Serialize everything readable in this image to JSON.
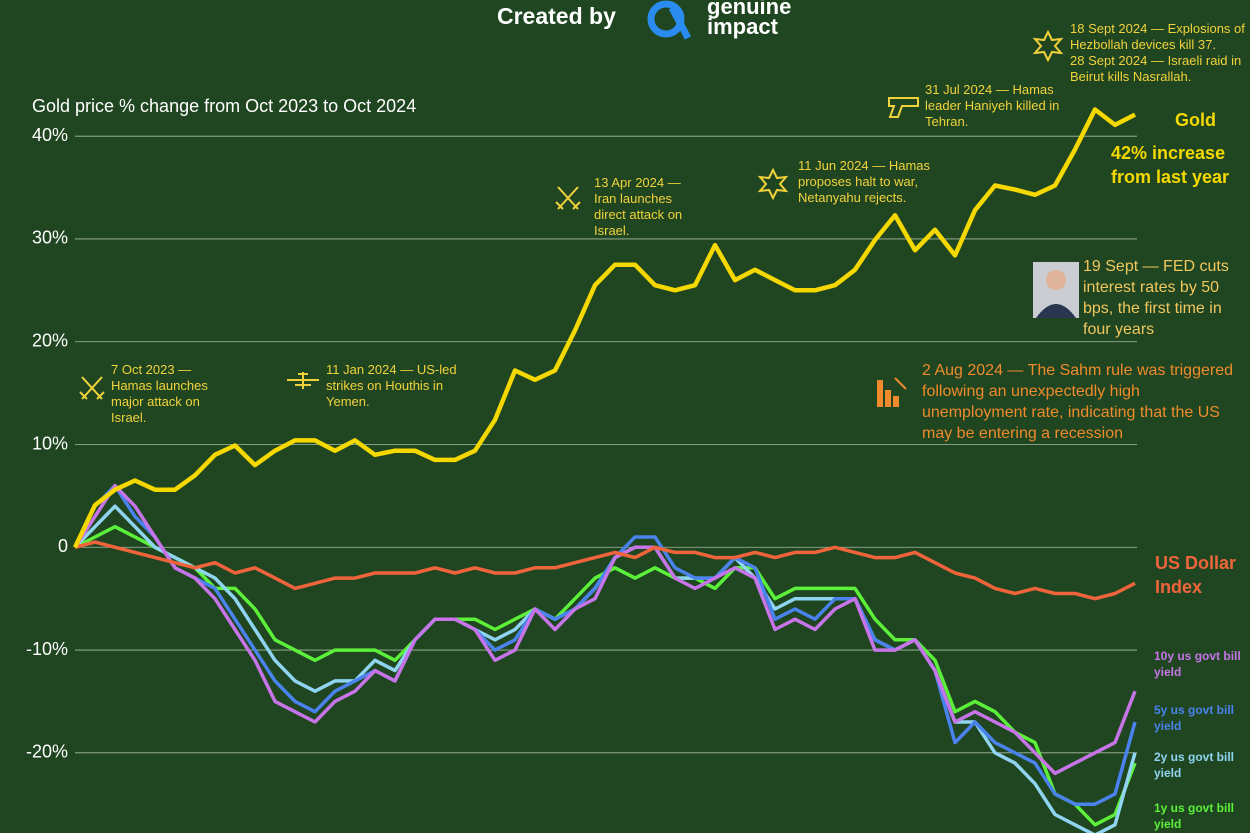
{
  "header": {
    "credit": "Created by",
    "brand": [
      "genuine",
      "impact"
    ]
  },
  "chart_data": {
    "type": "line",
    "title": "Gold price % change from Oct 2023 to Oct 2024",
    "ylim": [
      -27.8,
      45
    ],
    "yticks": [
      {
        "value": 40,
        "label": "40%"
      },
      {
        "value": 30,
        "label": "30%"
      },
      {
        "value": 20,
        "label": "20%"
      },
      {
        "value": 10,
        "label": "10%"
      },
      0,
      {
        "value": -10,
        "label": "-10%"
      },
      {
        "value": -20,
        "label": "-20%"
      }
    ],
    "grid": true,
    "series": [
      {
        "name": "Gold",
        "color": "#f5d800",
        "values": [
          0,
          4.1,
          5.6,
          6.5,
          5.6,
          5.6,
          7.0,
          9.0,
          9.9,
          8.0,
          9.4,
          10.4,
          10.4,
          9.4,
          10.4,
          9.0,
          9.4,
          9.4,
          8.5,
          8.5,
          9.4,
          12.4,
          17.2,
          16.3,
          17.2,
          21.1,
          25.5,
          27.5,
          27.5,
          25.5,
          25.0,
          25.5,
          29.4,
          26.0,
          27.0,
          26.0,
          25.0,
          25.0,
          25.5,
          27.0,
          29.9,
          32.3,
          28.9,
          30.9,
          28.4,
          32.8,
          35.2,
          34.8,
          34.3,
          35.2,
          38.7,
          42.6,
          41.1,
          42.1
        ]
      },
      {
        "name": "US Dollar Index",
        "color": "#f0643c",
        "values": [
          0,
          0.5,
          0,
          -0.5,
          -1,
          -1.5,
          -2,
          -1.5,
          -2.5,
          -2,
          -3,
          -4,
          -3.5,
          -3,
          -3,
          -2.5,
          -2.5,
          -2.5,
          -2,
          -2.5,
          -2,
          -2.5,
          -2.5,
          -2,
          -2,
          -1.5,
          -1,
          -0.5,
          -1,
          0,
          -0.5,
          -0.5,
          -1,
          -1,
          -0.5,
          -1,
          -0.5,
          -0.5,
          0,
          -0.5,
          -1,
          -1,
          -0.5,
          -1.5,
          -2.5,
          -3,
          -4,
          -4.5,
          -4,
          -4.5,
          -4.5,
          -5,
          -4.5,
          -3.5
        ]
      },
      {
        "name": "10y us govt bill yield",
        "color": "#c774e8",
        "values": [
          0,
          3,
          6,
          4,
          1,
          -2,
          -3,
          -5,
          -8,
          -11,
          -15,
          -16,
          -17,
          -15,
          -14,
          -12,
          -13,
          -9,
          -7,
          -7,
          -8,
          -11,
          -10,
          -6,
          -8,
          -6,
          -5,
          -1,
          0,
          0,
          -3,
          -4,
          -3,
          -2,
          -3,
          -8,
          -7,
          -8,
          -6,
          -5,
          -10,
          -10,
          -9,
          -12,
          -17,
          -16,
          -17,
          -18,
          -20,
          -22,
          -21,
          -20,
          -19,
          -14
        ]
      },
      {
        "name": "5y us govt bill yield",
        "color": "#4a82ee",
        "values": [
          0,
          4,
          6,
          3,
          1,
          -2,
          -3,
          -4,
          -7,
          -10,
          -13,
          -15,
          -16,
          -14,
          -13,
          -12,
          -13,
          -9,
          -7,
          -7,
          -8,
          -10,
          -9,
          -6,
          -7,
          -6,
          -4,
          -1,
          1,
          1,
          -2,
          -3,
          -3,
          -1,
          -2,
          -7,
          -6,
          -7,
          -5,
          -5,
          -9,
          -10,
          -9,
          -12,
          -19,
          -17,
          -19,
          -20,
          -21,
          -24,
          -25,
          -25,
          -24,
          -17
        ]
      },
      {
        "name": "2y us govt bill yield",
        "color": "#8fd4f0",
        "values": [
          0,
          2,
          4,
          2,
          0,
          -1,
          -2,
          -3,
          -5,
          -8,
          -11,
          -13,
          -14,
          -13,
          -13,
          -11,
          -12,
          -9,
          -7,
          -7,
          -8,
          -9,
          -8,
          -6,
          -7,
          -6,
          -4,
          -1,
          0,
          0,
          -3,
          -3,
          -3,
          -1,
          -3,
          -6,
          -5,
          -5,
          -5,
          -5,
          -9,
          -10,
          -9,
          -12,
          -17,
          -17,
          -20,
          -21,
          -23,
          -26,
          -27,
          -28,
          -27,
          -20
        ]
      },
      {
        "name": "1y us govt bill yield",
        "color": "#5df03a",
        "values": [
          0,
          1,
          2,
          1,
          0,
          -1,
          -2,
          -4,
          -4,
          -6,
          -9,
          -10,
          -11,
          -10,
          -10,
          -10,
          -11,
          -9,
          -7,
          -7,
          -7,
          -8,
          -7,
          -6,
          -7,
          -5,
          -3,
          -2,
          -3,
          -2,
          -3,
          -3,
          -4,
          -2,
          -2,
          -5,
          -4,
          -4,
          -4,
          -4,
          -7,
          -9,
          -9,
          -11,
          -16,
          -15,
          -16,
          -18,
          -19,
          -24,
          -25,
          -27,
          -26,
          -21
        ]
      }
    ],
    "annotations": [
      {
        "text": "7 Oct 2023 — Hamas launches major attack on Israel."
      },
      {
        "text": "11 Jan 2024 — US-led strikes on Houthis in Yemen."
      },
      {
        "text": "13 Apr 2024 — Iran launches direct attack on Israel."
      },
      {
        "text": "11 Jun 2024 — Hamas proposes halt to war, Netanyahu rejects."
      },
      {
        "text": "31 Jul 2024 — Hamas leader Haniyeh killed in Tehran."
      },
      {
        "text": "18 Sept 2024 — Explosions of Hezbollah devices kill 37."
      },
      {
        "text": "28 Sept 2024 — Israeli raid in Beirut kills Nasrallah."
      },
      {
        "text": "19 Sept — FED cuts interest rates by 50 bps, the first time in four years"
      },
      {
        "text": "2 Aug 2024 — The Sahm rule was triggered following an unexpectedly high unemployment rate, indicating that the US may be entering a recession"
      },
      {
        "text": "42% increase from last year"
      }
    ]
  }
}
